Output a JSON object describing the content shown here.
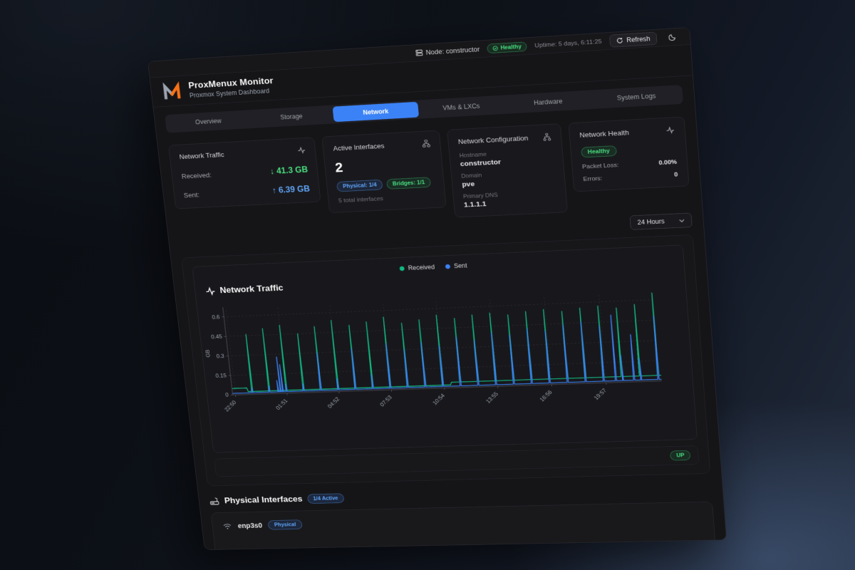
{
  "header": {
    "node_label": "Node: constructor",
    "health_badge": "Healthy",
    "uptime": "Uptime: 5 days, 6:11:25",
    "refresh_label": "Refresh"
  },
  "brand": {
    "title": "ProxMenux Monitor",
    "subtitle": "Proxmox System Dashboard"
  },
  "tabs": [
    {
      "label": "Overview",
      "active": false
    },
    {
      "label": "Storage",
      "active": false
    },
    {
      "label": "Network",
      "active": true
    },
    {
      "label": "VMs & LXCs",
      "active": false
    },
    {
      "label": "Hardware",
      "active": false
    },
    {
      "label": "System Logs",
      "active": false
    }
  ],
  "cards": {
    "traffic": {
      "title": "Network Traffic",
      "received_label": "Received:",
      "received_arrow": "↓",
      "received_value": "41.3 GB",
      "sent_label": "Sent:",
      "sent_arrow": "↑",
      "sent_value": "6.39 GB"
    },
    "interfaces": {
      "title": "Active Interfaces",
      "count": "2",
      "physical_badge": "Physical: 1/4",
      "bridges_badge": "Bridges: 1/1",
      "total": "5 total interfaces"
    },
    "config": {
      "title": "Network Configuration",
      "hostname_label": "Hostname",
      "hostname": "constructor",
      "domain_label": "Domain",
      "domain": "pve",
      "dns_label": "Primary DNS",
      "dns": "1.1.1.1"
    },
    "health": {
      "title": "Network Health",
      "status": "Healthy",
      "packet_loss_label": "Packet Loss:",
      "packet_loss": "0.00%",
      "errors_label": "Errors:",
      "errors": "0"
    }
  },
  "time_range": {
    "selected": "24 Hours"
  },
  "chart_data": {
    "type": "line",
    "title": "Network Traffic",
    "ylabel": "GB",
    "ylim": [
      0,
      0.65
    ],
    "y_ticks": [
      0,
      0.15,
      0.3,
      0.45,
      0.6
    ],
    "x_ticks": [
      "22:50",
      "01:51",
      "04:52",
      "07:53",
      "10:54",
      "13:55",
      "16:56",
      "19:57"
    ],
    "x_tick_start_min": 10,
    "x_tick_interval_min": 181,
    "total_minutes": 1460,
    "grid": true,
    "grid_color": "#3c3c44",
    "axis_color": "#55555e",
    "legend_position": "top-center",
    "series": [
      {
        "name": "Received",
        "color": "#10b981",
        "baseline_gb": 0.022,
        "bumps": [
          [
            0,
            55,
            0.05
          ],
          [
            760,
            1460,
            0.042
          ]
        ],
        "spikes": [
          [
            70,
            0.46
          ],
          [
            130,
            0.5
          ],
          [
            190,
            0.52
          ],
          [
            250,
            0.45
          ],
          [
            310,
            0.5
          ],
          [
            370,
            0.54
          ],
          [
            430,
            0.5
          ],
          [
            490,
            0.52
          ],
          [
            550,
            0.55
          ],
          [
            610,
            0.5
          ],
          [
            670,
            0.52
          ],
          [
            730,
            0.55
          ],
          [
            790,
            0.52
          ],
          [
            850,
            0.54
          ],
          [
            910,
            0.55
          ],
          [
            970,
            0.53
          ],
          [
            1030,
            0.55
          ],
          [
            1090,
            0.56
          ],
          [
            1150,
            0.54
          ],
          [
            1210,
            0.56
          ],
          [
            1270,
            0.57
          ],
          [
            1330,
            0.55
          ],
          [
            1390,
            0.57
          ],
          [
            1450,
            0.65
          ]
        ]
      },
      {
        "name": "Sent",
        "color": "#3b82f6",
        "baseline_gb": 0.012,
        "bumps": [],
        "spikes": [
          [
            70,
            0.05
          ],
          [
            130,
            0.06
          ],
          [
            160,
            0.1
          ],
          [
            168,
            0.28
          ],
          [
            176,
            0.22
          ],
          [
            190,
            0.07
          ],
          [
            250,
            0.07
          ],
          [
            310,
            0.3
          ],
          [
            370,
            0.1
          ],
          [
            430,
            0.32
          ],
          [
            490,
            0.12
          ],
          [
            550,
            0.35
          ],
          [
            610,
            0.3
          ],
          [
            670,
            0.35
          ],
          [
            730,
            0.32
          ],
          [
            790,
            0.38
          ],
          [
            850,
            0.35
          ],
          [
            910,
            0.4
          ],
          [
            970,
            0.38
          ],
          [
            1030,
            0.42
          ],
          [
            1090,
            0.4
          ],
          [
            1150,
            0.44
          ],
          [
            1210,
            0.46
          ],
          [
            1270,
            0.42
          ],
          [
            1310,
            0.5
          ],
          [
            1332,
            0.2
          ],
          [
            1370,
            0.35
          ],
          [
            1392,
            0.17
          ],
          [
            1450,
            0.48
          ]
        ]
      }
    ]
  },
  "status_row": {
    "status": "UP"
  },
  "physical": {
    "title": "Physical Interfaces",
    "active_badge": "1/4 Active",
    "rows": [
      {
        "name": "enp3s0",
        "type_badge": "Physical"
      }
    ]
  },
  "colors": {
    "accent": "#3b82f6",
    "green": "#22c55e",
    "orange": "#f97316"
  },
  "icons": {
    "server": "▤",
    "check": "✓",
    "refresh": "↻",
    "moon": "☾",
    "activity": "∿",
    "hierarchy": "⫰",
    "chevron_down": "▾",
    "router": "⌂",
    "wifi": "☰",
    "arrow_down": "↓",
    "arrow_up": "↑"
  }
}
